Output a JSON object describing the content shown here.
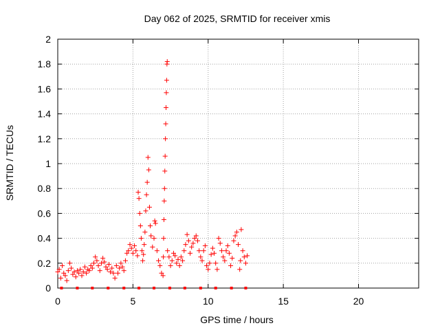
{
  "chart_data": {
    "type": "scatter",
    "title": "Day 062 of 2025, SRMTID for receiver xmis",
    "xlabel": "GPS time / hours",
    "ylabel": "SRMTID / TECUs",
    "xlim": [
      0,
      24
    ],
    "ylim": [
      0,
      2
    ],
    "x_ticks": [
      "0",
      "5",
      "10",
      "15",
      "20"
    ],
    "x_tick_values": [
      0,
      5,
      10,
      15,
      20
    ],
    "y_ticks": [
      "0",
      "0.2",
      "0.4",
      "0.6",
      "0.8",
      "1",
      "1.2",
      "1.4",
      "1.6",
      "1.8",
      "2"
    ],
    "y_tick_values": [
      0,
      0.2,
      0.4,
      0.6,
      0.8,
      1.0,
      1.2,
      1.4,
      1.6,
      1.8,
      2.0
    ],
    "grid": true,
    "marker": "+",
    "marker_color": "#ff0000",
    "baseline_markers_x": [
      0.25,
      1.3,
      2.3,
      3.35,
      4.4,
      5.4,
      6.4,
      7.45,
      8.45,
      9.5,
      10.5,
      11.55,
      12.5
    ],
    "series": [
      {
        "name": "SRMTID",
        "points": [
          [
            0.0,
            0.13
          ],
          [
            0.1,
            0.15
          ],
          [
            0.2,
            0.08
          ],
          [
            0.3,
            0.18
          ],
          [
            0.4,
            0.12
          ],
          [
            0.5,
            0.1
          ],
          [
            0.6,
            0.06
          ],
          [
            0.7,
            0.14
          ],
          [
            0.8,
            0.2
          ],
          [
            0.9,
            0.16
          ],
          [
            1.0,
            0.11
          ],
          [
            1.1,
            0.13
          ],
          [
            1.2,
            0.09
          ],
          [
            1.3,
            0.14
          ],
          [
            1.4,
            0.12
          ],
          [
            1.5,
            0.15
          ],
          [
            1.6,
            0.1
          ],
          [
            1.7,
            0.13
          ],
          [
            1.8,
            0.17
          ],
          [
            1.9,
            0.12
          ],
          [
            2.0,
            0.15
          ],
          [
            2.1,
            0.14
          ],
          [
            2.2,
            0.18
          ],
          [
            2.3,
            0.16
          ],
          [
            2.4,
            0.2
          ],
          [
            2.5,
            0.25
          ],
          [
            2.6,
            0.22
          ],
          [
            2.7,
            0.18
          ],
          [
            2.8,
            0.14
          ],
          [
            2.9,
            0.2
          ],
          [
            3.0,
            0.24
          ],
          [
            3.1,
            0.21
          ],
          [
            3.2,
            0.17
          ],
          [
            3.3,
            0.15
          ],
          [
            3.4,
            0.19
          ],
          [
            3.5,
            0.13
          ],
          [
            3.6,
            0.16
          ],
          [
            3.7,
            0.12
          ],
          [
            3.8,
            0.08
          ],
          [
            3.9,
            0.18
          ],
          [
            4.0,
            0.12
          ],
          [
            4.1,
            0.16
          ],
          [
            4.2,
            0.2
          ],
          [
            4.3,
            0.17
          ],
          [
            4.4,
            0.14
          ],
          [
            4.5,
            0.22
          ],
          [
            4.6,
            0.28
          ],
          [
            4.7,
            0.3
          ],
          [
            4.8,
            0.35
          ],
          [
            4.9,
            0.32
          ],
          [
            5.0,
            0.28
          ],
          [
            5.1,
            0.34
          ],
          [
            5.2,
            0.3
          ],
          [
            5.3,
            0.26
          ],
          [
            5.35,
            0.77
          ],
          [
            5.4,
            0.72
          ],
          [
            5.45,
            0.6
          ],
          [
            5.5,
            0.5
          ],
          [
            5.55,
            0.4
          ],
          [
            5.6,
            0.3
          ],
          [
            5.65,
            0.22
          ],
          [
            5.7,
            0.27
          ],
          [
            5.75,
            0.35
          ],
          [
            5.8,
            0.45
          ],
          [
            5.85,
            0.62
          ],
          [
            5.9,
            0.75
          ],
          [
            5.95,
            0.85
          ],
          [
            6.0,
            1.05
          ],
          [
            6.05,
            0.95
          ],
          [
            6.1,
            0.65
          ],
          [
            6.15,
            0.5
          ],
          [
            6.2,
            0.42
          ],
          [
            6.3,
            0.33
          ],
          [
            6.4,
            0.4
          ],
          [
            6.45,
            0.54
          ],
          [
            6.5,
            0.52
          ],
          [
            6.6,
            0.3
          ],
          [
            6.7,
            0.22
          ],
          [
            6.8,
            0.18
          ],
          [
            6.9,
            0.12
          ],
          [
            7.0,
            0.1
          ],
          [
            7.02,
            0.25
          ],
          [
            7.04,
            0.4
          ],
          [
            7.06,
            0.55
          ],
          [
            7.08,
            0.7
          ],
          [
            7.1,
            0.8
          ],
          [
            7.12,
            0.94
          ],
          [
            7.14,
            1.06
          ],
          [
            7.16,
            1.2
          ],
          [
            7.18,
            1.32
          ],
          [
            7.2,
            1.45
          ],
          [
            7.22,
            1.57
          ],
          [
            7.24,
            1.67
          ],
          [
            7.26,
            1.8
          ],
          [
            7.28,
            1.82
          ],
          [
            7.3,
            0.3
          ],
          [
            7.4,
            0.25
          ],
          [
            7.5,
            0.18
          ],
          [
            7.6,
            0.22
          ],
          [
            7.7,
            0.28
          ],
          [
            7.8,
            0.26
          ],
          [
            7.9,
            0.2
          ],
          [
            8.0,
            0.23
          ],
          [
            8.1,
            0.18
          ],
          [
            8.2,
            0.25
          ],
          [
            8.3,
            0.22
          ],
          [
            8.4,
            0.3
          ],
          [
            8.5,
            0.35
          ],
          [
            8.6,
            0.43
          ],
          [
            8.7,
            0.38
          ],
          [
            8.8,
            0.28
          ],
          [
            8.9,
            0.33
          ],
          [
            9.0,
            0.36
          ],
          [
            9.1,
            0.4
          ],
          [
            9.2,
            0.42
          ],
          [
            9.3,
            0.38
          ],
          [
            9.4,
            0.3
          ],
          [
            9.5,
            0.25
          ],
          [
            9.6,
            0.22
          ],
          [
            9.7,
            0.3
          ],
          [
            9.8,
            0.34
          ],
          [
            9.9,
            0.18
          ],
          [
            10.0,
            0.15
          ],
          [
            10.1,
            0.2
          ],
          [
            10.2,
            0.27
          ],
          [
            10.3,
            0.32
          ],
          [
            10.4,
            0.28
          ],
          [
            10.5,
            0.2
          ],
          [
            10.6,
            0.15
          ],
          [
            10.7,
            0.4
          ],
          [
            10.8,
            0.36
          ],
          [
            10.9,
            0.3
          ],
          [
            11.0,
            0.25
          ],
          [
            11.1,
            0.22
          ],
          [
            11.2,
            0.3
          ],
          [
            11.3,
            0.34
          ],
          [
            11.4,
            0.28
          ],
          [
            11.5,
            0.18
          ],
          [
            11.6,
            0.24
          ],
          [
            11.7,
            0.38
          ],
          [
            11.8,
            0.42
          ],
          [
            11.9,
            0.45
          ],
          [
            12.0,
            0.35
          ],
          [
            12.1,
            0.15
          ],
          [
            12.15,
            0.22
          ],
          [
            12.2,
            0.47
          ],
          [
            12.3,
            0.3
          ],
          [
            12.4,
            0.25
          ],
          [
            12.5,
            0.2
          ],
          [
            12.6,
            0.26
          ]
        ]
      }
    ]
  }
}
